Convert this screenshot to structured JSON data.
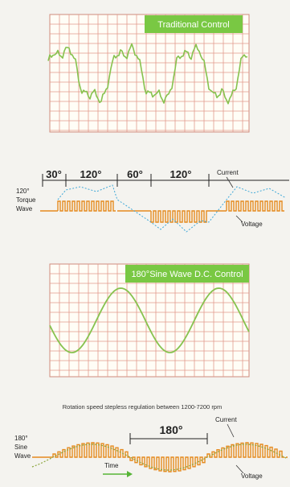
{
  "panels": {
    "traditional": {
      "title": "Traditional Control"
    },
    "sine": {
      "title": "180°Sine Wave D.C. Control"
    }
  },
  "caption": "Rotation speed stepless regulation between 1200-7200 rpm",
  "torque_diagram": {
    "label_line1": "120°",
    "label_line2": "Torque",
    "label_line3": "Wave",
    "segments": [
      "30°",
      "120°",
      "60°",
      "120°"
    ],
    "current_label": "Current",
    "voltage_label": "Voltage"
  },
  "sine_diagram": {
    "label_line1": "180°",
    "label_line2": "Sine",
    "label_line3": "Wave",
    "angle_label": "180°",
    "current_label": "Current",
    "voltage_label": "Voltage",
    "time_label": "Time"
  },
  "colors": {
    "badge": "#79c843",
    "wave": "#86c24e",
    "grid": "#e29a8c",
    "pulse": "#e58a1f",
    "dashed": "#3fa8d8"
  }
}
